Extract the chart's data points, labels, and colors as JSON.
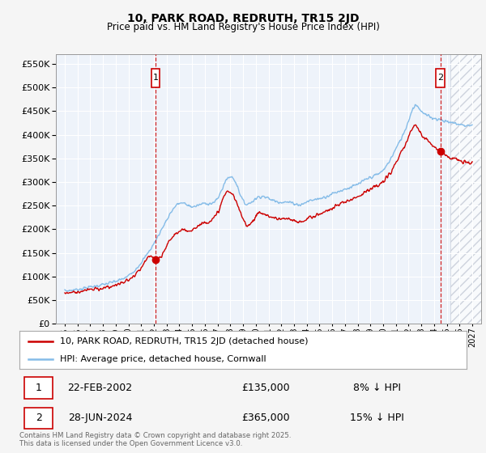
{
  "title": "10, PARK ROAD, REDRUTH, TR15 2JD",
  "subtitle": "Price paid vs. HM Land Registry's House Price Index (HPI)",
  "ylim": [
    0,
    570000
  ],
  "yticks": [
    0,
    50000,
    100000,
    150000,
    200000,
    250000,
    300000,
    350000,
    400000,
    450000,
    500000,
    550000
  ],
  "xlim_start": 1994.3,
  "xlim_end": 2027.7,
  "plot_bg": "#eef3fa",
  "grid_color": "#ffffff",
  "red_line_color": "#cc0000",
  "blue_line_color": "#85bce8",
  "sale1_x": 2002.14,
  "sale1_y": 135000,
  "sale2_x": 2024.49,
  "sale2_y": 365000,
  "future_start_year": 2025.3,
  "legend_red_label": "10, PARK ROAD, REDRUTH, TR15 2JD (detached house)",
  "legend_blue_label": "HPI: Average price, detached house, Cornwall",
  "note1_label": "1",
  "note1_date": "22-FEB-2002",
  "note1_price": "£135,000",
  "note1_hpi": "8% ↓ HPI",
  "note2_label": "2",
  "note2_date": "28-JUN-2024",
  "note2_price": "£365,000",
  "note2_hpi": "15% ↓ HPI",
  "footer": "Contains HM Land Registry data © Crown copyright and database right 2025.\nThis data is licensed under the Open Government Licence v3.0."
}
